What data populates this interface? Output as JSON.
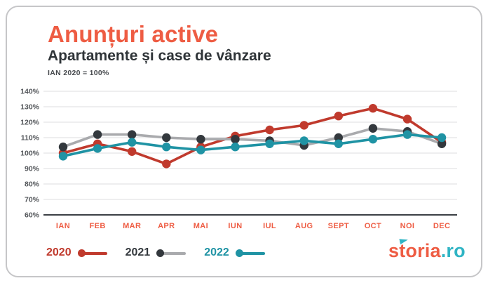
{
  "header": {
    "title": "Anunțuri active",
    "subtitle": "Apartamente și case de vânzare",
    "note": "IAN 2020 = 100%"
  },
  "legend": {
    "items": [
      {
        "label": "2020",
        "text_color": "#c03a2d",
        "dot_color": "#c03a2d",
        "line_color": "#c03a2d"
      },
      {
        "label": "2021",
        "text_color": "#33383d",
        "dot_color": "#33383d",
        "line_color": "#a9aaad"
      },
      {
        "label": "2022",
        "text_color": "#1f93a4",
        "dot_color": "#1f93a4",
        "line_color": "#1f93a4"
      }
    ]
  },
  "logo": {
    "brand": "storia",
    "tld": ".ro",
    "brand_color": "#ee5c43",
    "tld_color": "#2fb4c4"
  },
  "colors": {
    "title_coral": "#ee5c43",
    "subtitle_dark": "#2f3438",
    "grid_light": "#e3e3e5",
    "axis_dark": "#3c4045",
    "card_border": "#c6c6c8"
  },
  "chart_data": {
    "type": "line",
    "title": "Anunțuri active",
    "subtitle": "Apartamente și case de vânzare",
    "note": "IAN 2020 = 100%",
    "categories": [
      "IAN",
      "FEB",
      "MAR",
      "APR",
      "MAI",
      "IUN",
      "IUL",
      "AUG",
      "SEPT",
      "OCT",
      "NOI",
      "DEC"
    ],
    "unit": "%",
    "ylim": [
      60,
      140
    ],
    "ytick_step": 10,
    "grid": true,
    "legend_position": "bottom-left",
    "series": [
      {
        "name": "2020",
        "dot_color": "#c03a2d",
        "line_color": "#c03a2d",
        "values": [
          100,
          106,
          101,
          93,
          104,
          111,
          115,
          118,
          124,
          129,
          122,
          107
        ]
      },
      {
        "name": "2021",
        "dot_color": "#33383d",
        "line_color": "#a9aaad",
        "values": [
          104,
          112,
          112,
          110,
          109,
          109,
          108,
          105,
          110,
          116,
          114,
          106
        ]
      },
      {
        "name": "2022",
        "dot_color": "#1f93a4",
        "line_color": "#1f93a4",
        "values": [
          98,
          103,
          107,
          104,
          102,
          104,
          106,
          108,
          106,
          109,
          112,
          110
        ]
      }
    ]
  }
}
